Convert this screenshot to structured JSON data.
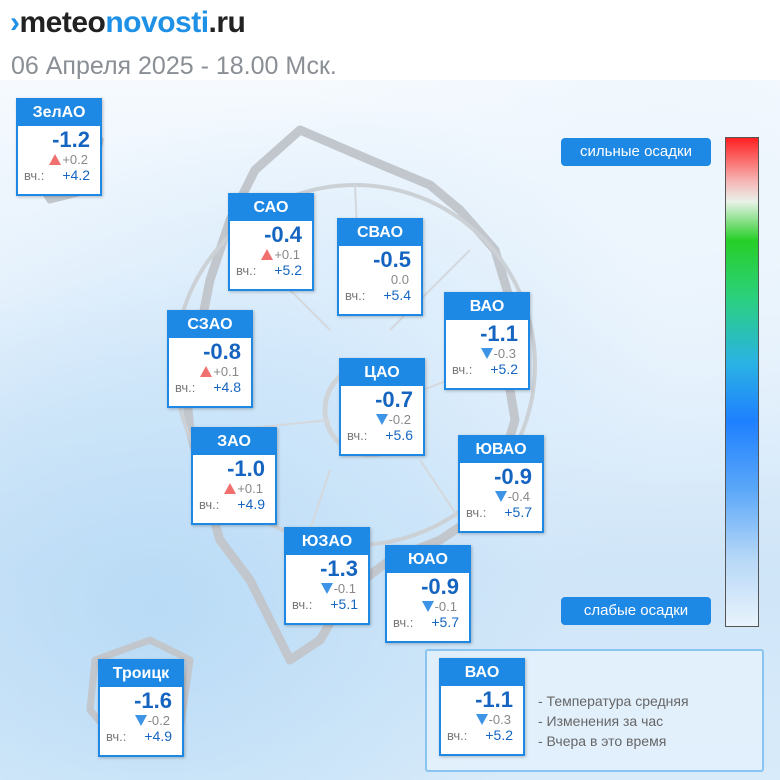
{
  "header": {
    "logo_prefix": "meteo",
    "logo_accent": "novosti",
    "logo_suffix": ".ru",
    "date_line": "06 Апреля 2025 - 18.00 Мск."
  },
  "yesterday_label": "вч.:",
  "districts": [
    {
      "name": "ЗелАО",
      "temp": "-1.2",
      "change": "+0.2",
      "trend": "up",
      "yesterday": "+4.2"
    },
    {
      "name": "САО",
      "temp": "-0.4",
      "change": "+0.1",
      "trend": "up",
      "yesterday": "+5.2"
    },
    {
      "name": "СВАО",
      "temp": "-0.5",
      "change": "0.0",
      "trend": "none",
      "yesterday": "+5.4"
    },
    {
      "name": "ВАО",
      "temp": "-1.1",
      "change": "-0.3",
      "trend": "down",
      "yesterday": "+5.2"
    },
    {
      "name": "СЗАО",
      "temp": "-0.8",
      "change": "+0.1",
      "trend": "up",
      "yesterday": "+4.8"
    },
    {
      "name": "ЦАО",
      "temp": "-0.7",
      "change": "-0.2",
      "trend": "down",
      "yesterday": "+5.6"
    },
    {
      "name": "ЗАО",
      "temp": "-1.0",
      "change": "+0.1",
      "trend": "up",
      "yesterday": "+4.9"
    },
    {
      "name": "ЮВАО",
      "temp": "-0.9",
      "change": "-0.4",
      "trend": "down",
      "yesterday": "+5.7"
    },
    {
      "name": "ЮЗАО",
      "temp": "-1.3",
      "change": "-0.1",
      "trend": "down",
      "yesterday": "+5.1"
    },
    {
      "name": "ЮАО",
      "temp": "-0.9",
      "change": "-0.1",
      "trend": "down",
      "yesterday": "+5.7"
    },
    {
      "name": "Троицк",
      "temp": "-1.6",
      "change": "-0.2",
      "trend": "down",
      "yesterday": "+4.9"
    }
  ],
  "precip_scale": {
    "top_label": "сильные осадки",
    "bottom_label": "слабые осадки",
    "colors": [
      "#ff2020",
      "#27cf27",
      "#1e80ff",
      "#e9f3fc"
    ]
  },
  "legend": {
    "sample": {
      "name": "ВАО",
      "temp": "-1.1",
      "change": "-0.3",
      "trend": "down",
      "yesterday": "+5.2"
    },
    "lines": [
      "- Температура средняя",
      "- Изменения за час",
      "- Вчера в это время"
    ]
  },
  "colors": {
    "accent": "#1e88e5",
    "up": "#f07070",
    "down": "#3d94e6"
  }
}
